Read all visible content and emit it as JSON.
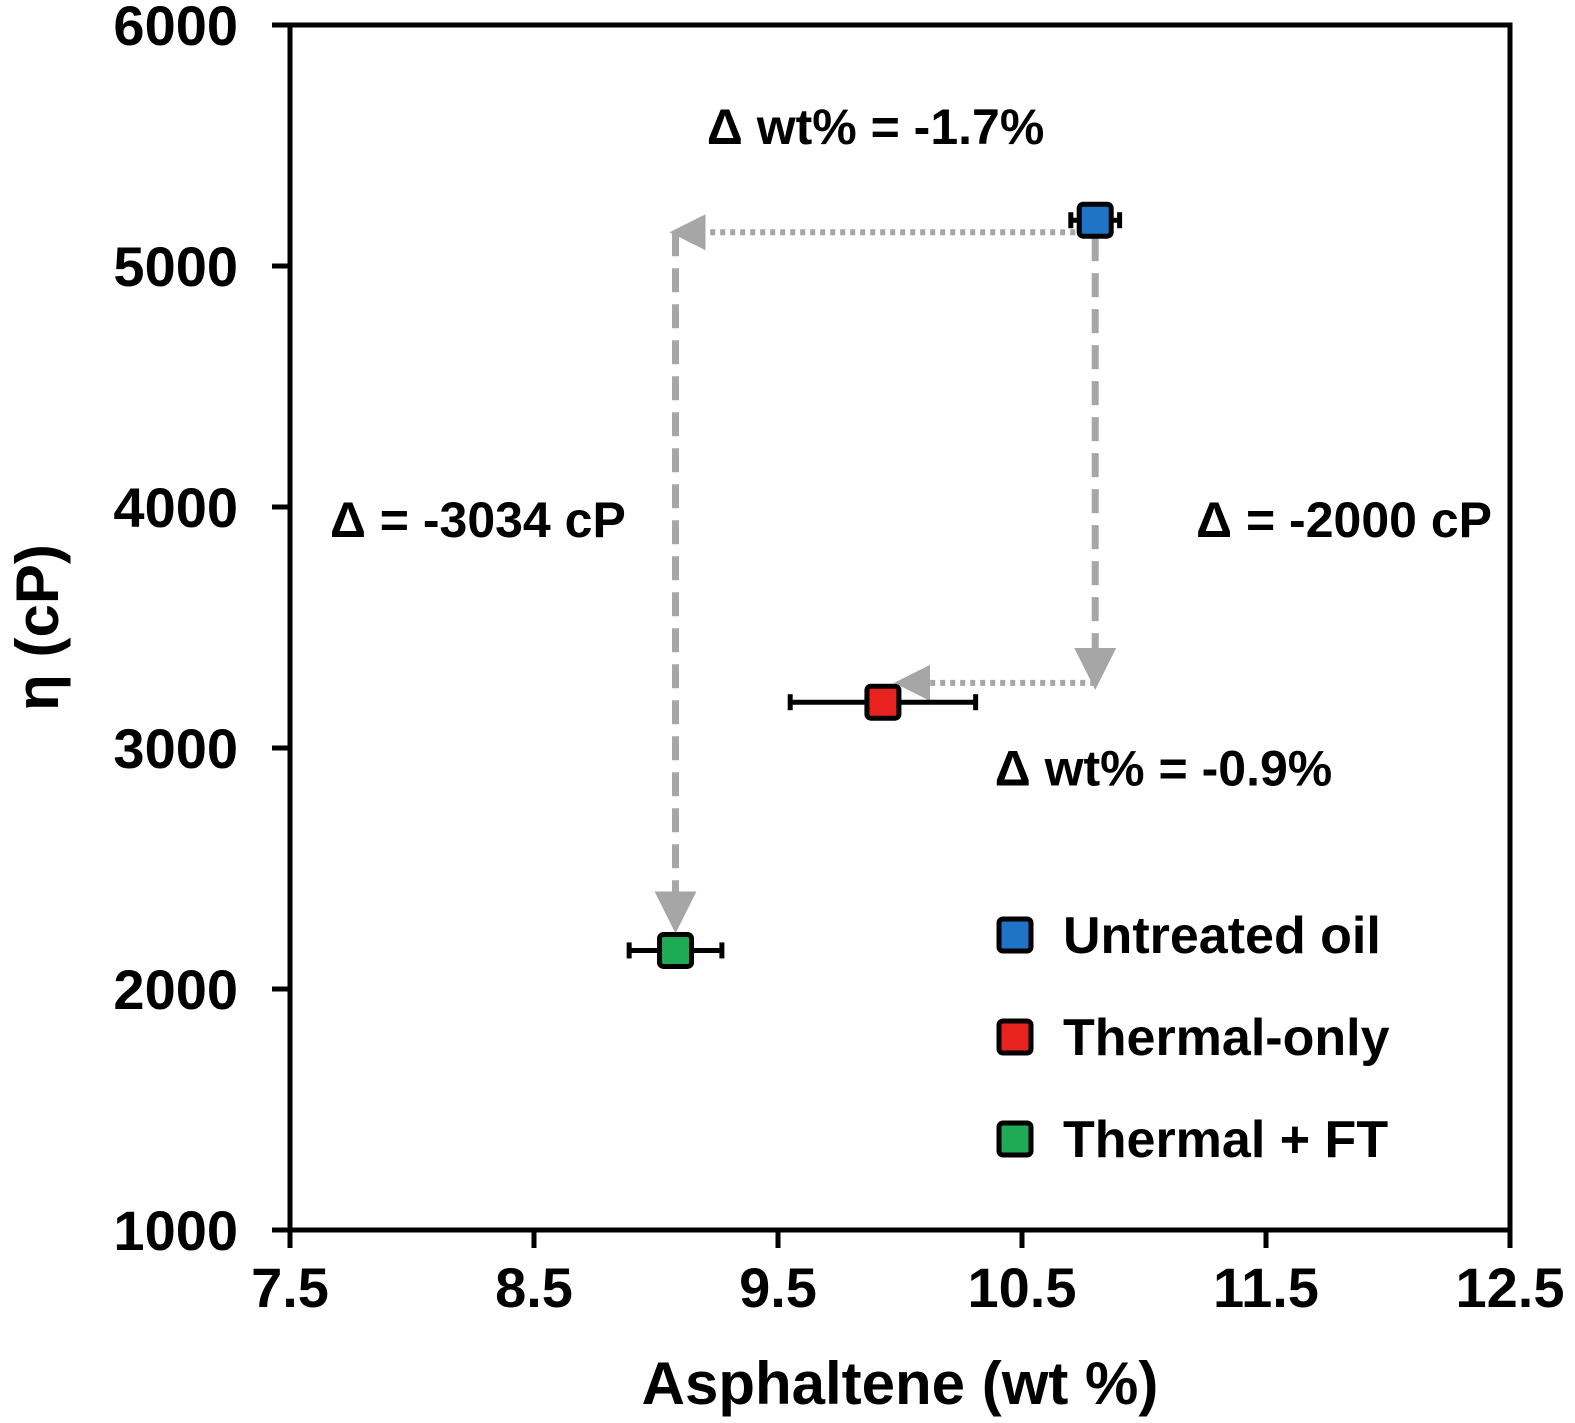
{
  "chart_data": {
    "type": "scatter",
    "title": "",
    "xlabel": "Asphaltene (wt %)",
    "ylabel": "η (cP)",
    "xlim": [
      7.5,
      12.5
    ],
    "ylim": [
      1000,
      6000
    ],
    "xticks": [
      "7.5",
      "8.5",
      "9.5",
      "10.5",
      "11.5",
      "12.5"
    ],
    "yticks": [
      "1000",
      "2000",
      "3000",
      "4000",
      "5000",
      "6000"
    ],
    "grid": false,
    "legend_position": "bottom-right",
    "series": [
      {
        "name": "Untreated oil",
        "color": "#1f74c8",
        "x": 10.8,
        "y": 5190,
        "xerr": 0.1
      },
      {
        "name": "Thermal-only",
        "color": "#e8231f",
        "x": 9.93,
        "y": 3190,
        "xerr": 0.38
      },
      {
        "name": "Thermal + FT",
        "color": "#1faa55",
        "x": 9.08,
        "y": 2160,
        "xerr": 0.19
      }
    ],
    "annotations": [
      {
        "text": "Δ wt% = -1.7%",
        "x": 9.9,
        "y": 5580
      },
      {
        "text": "Δ wt% = -0.9%",
        "x": 11.08,
        "y": 2920
      },
      {
        "text": "Δ = -3034 cP",
        "x": 8.27,
        "y": 3950
      },
      {
        "text": "Δ = -2000 cP",
        "x": 11.82,
        "y": 3950
      }
    ],
    "arrows": [
      {
        "style": "dotted",
        "from": [
          10.8,
          5140
        ],
        "to": [
          9.08,
          5140
        ]
      },
      {
        "style": "dashed",
        "from": [
          9.08,
          5140
        ],
        "to": [
          9.08,
          2260
        ]
      },
      {
        "style": "dashed",
        "from": [
          10.8,
          5120
        ],
        "to": [
          10.8,
          3270
        ]
      },
      {
        "style": "dotted",
        "from": [
          10.8,
          3270
        ],
        "to": [
          10.0,
          3270
        ]
      }
    ],
    "arrow_color": "#a6a6a6"
  }
}
